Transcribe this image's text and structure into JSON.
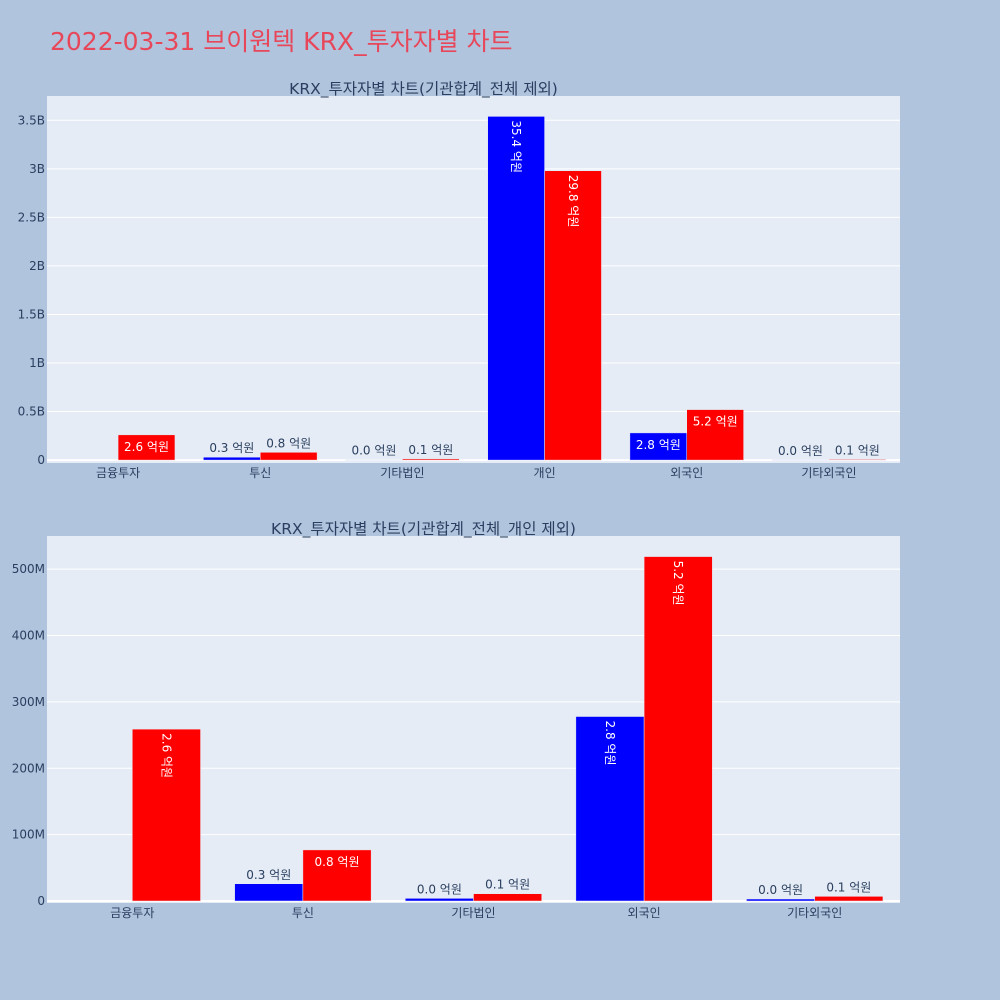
{
  "page_title": "2022-03-31 브이원텍 KRX_투자자별 차트",
  "colors": {
    "background": "#b0c4de",
    "plot_bg": "#e5ecf6",
    "gridline": "#ffffff",
    "series_a": "#0000ff",
    "series_b": "#ff0000",
    "title": "#e8475a",
    "text": "#2a3f5f"
  },
  "chart_data": [
    {
      "type": "bar",
      "title": "KRX_투자자별 차트(기관합계_전체 제외)",
      "categories": [
        "금융투자",
        "투신",
        "기타법인",
        "개인",
        "외국인",
        "기타외국인"
      ],
      "ylim": [
        -0.03,
        3.75
      ],
      "yticks": [
        0,
        0.5,
        1,
        1.5,
        2,
        2.5,
        3,
        3.5
      ],
      "ytick_labels": [
        "0",
        "0.5B",
        "1B",
        "1.5B",
        "2B",
        "2.5B",
        "3B",
        "3.5B"
      ],
      "series": [
        {
          "color": "#0000ff",
          "values": [
            0,
            0.03,
            0.004,
            3.54,
            0.28,
            0.003
          ],
          "labels": [
            "",
            "0.3 억원",
            "0.0 억원",
            "35.4 억원",
            "2.8 억원",
            "0.0 억원"
          ]
        },
        {
          "color": "#ff0000",
          "values": [
            0.26,
            0.08,
            0.012,
            2.98,
            0.52,
            0.007
          ],
          "labels": [
            "2.6 억원",
            "0.8 억원",
            "0.1 억원",
            "29.8 억원",
            "5.2 억원",
            "0.1 억원"
          ]
        }
      ]
    },
    {
      "type": "bar",
      "title": "KRX_투자자별 차트(기관합계_전체_개인 제외)",
      "categories": [
        "금융투자",
        "투신",
        "기타법인",
        "외국인",
        "기타외국인"
      ],
      "ylim": [
        -3,
        550
      ],
      "yticks": [
        0,
        100,
        200,
        300,
        400,
        500
      ],
      "ytick_labels": [
        "0",
        "100M",
        "200M",
        "300M",
        "400M",
        "500M"
      ],
      "series": [
        {
          "color": "#0000ff",
          "values": [
            0,
            26,
            4,
            278,
            3
          ],
          "labels": [
            "",
            "0.3 억원",
            "0.0 억원",
            "2.8 억원",
            "0.0 억원"
          ]
        },
        {
          "color": "#ff0000",
          "values": [
            259,
            77,
            11,
            519,
            7
          ],
          "labels": [
            "2.6 억원",
            "0.8 억원",
            "0.1 억원",
            "5.2 억원",
            "0.1 억원"
          ]
        }
      ]
    }
  ]
}
